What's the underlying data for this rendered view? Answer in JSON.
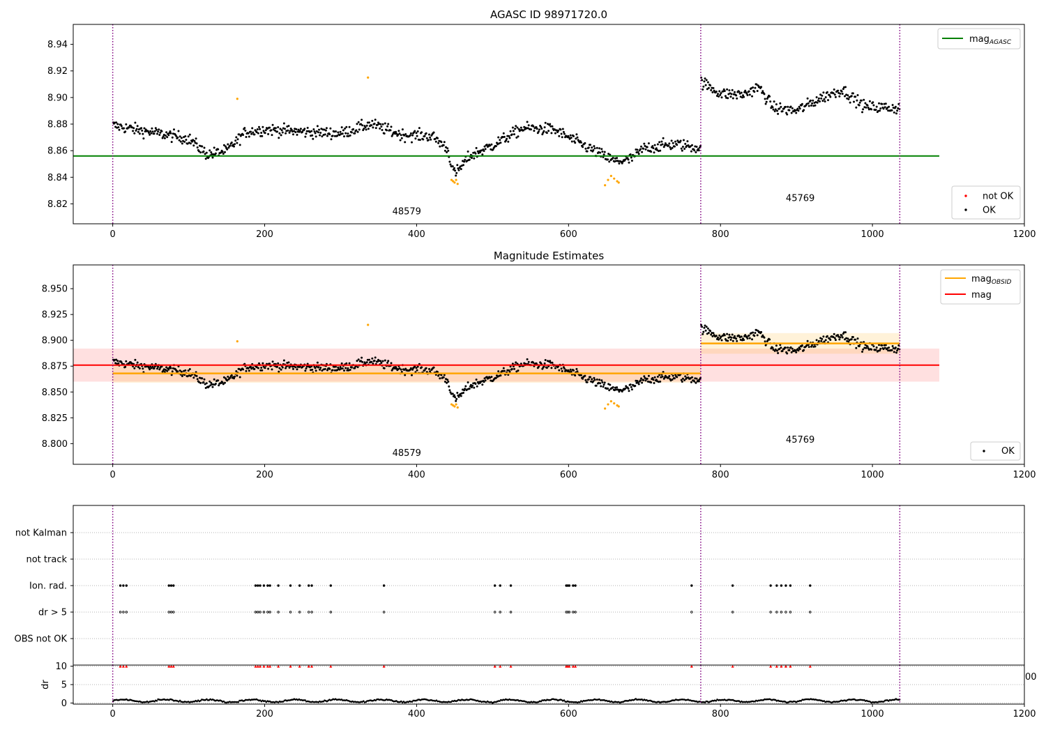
{
  "chart_data": [
    {
      "type": "scatter",
      "title": "AGASC ID 98971720.0",
      "xlim": [
        -52,
        1200
      ],
      "ylim": [
        8.805,
        8.955
      ],
      "xticks": [
        0,
        200,
        400,
        600,
        800,
        1000,
        1200
      ],
      "yticks": [
        8.82,
        8.84,
        8.86,
        8.88,
        8.9,
        8.92,
        8.94
      ],
      "obs_boundaries": [
        0,
        774,
        1036
      ],
      "obs_labels": [
        {
          "text": "48579",
          "x": 387,
          "y": 8.812
        },
        {
          "text": "45769",
          "x": 905,
          "y": 8.822
        }
      ],
      "lines": [
        {
          "name": "mag_AGASC",
          "label_main": "mag",
          "label_sub": "AGASC",
          "y": 8.856,
          "x_start": -52,
          "x_end": 1088,
          "color": "#008000"
        }
      ],
      "legend_top": {
        "position": "upper right",
        "entries": [
          {
            "series": "mag_AGASC",
            "main": "mag",
            "sub": "AGASC"
          }
        ]
      },
      "legend_bottom": {
        "position": "lower right",
        "entries": [
          {
            "label": "not OK",
            "color": "#ff0000"
          },
          {
            "label": "OK",
            "color": "#000000"
          }
        ]
      },
      "segments": [
        {
          "x_start": 0,
          "x_end": 774,
          "trend": [
            [
              0,
              8.879
            ],
            [
              60,
              8.873
            ],
            [
              100,
              8.869
            ],
            [
              125,
              8.857
            ],
            [
              150,
              8.86
            ],
            [
              175,
              8.874
            ],
            [
              200,
              8.876
            ],
            [
              260,
              8.874
            ],
            [
              300,
              8.873
            ],
            [
              340,
              8.88
            ],
            [
              380,
              8.872
            ],
            [
              420,
              8.871
            ],
            [
              440,
              8.862
            ],
            [
              450,
              8.842
            ],
            [
              470,
              8.856
            ],
            [
              500,
              8.864
            ],
            [
              540,
              8.877
            ],
            [
              580,
              8.876
            ],
            [
              620,
              8.864
            ],
            [
              660,
              8.852
            ],
            [
              680,
              8.853
            ],
            [
              700,
              8.862
            ],
            [
              740,
              8.865
            ],
            [
              774,
              8.862
            ]
          ],
          "noise": 0.007
        },
        {
          "x_start": 774,
          "x_end": 1036,
          "trend": [
            [
              774,
              8.912
            ],
            [
              800,
              8.903
            ],
            [
              830,
              8.902
            ],
            [
              850,
              8.908
            ],
            [
              870,
              8.892
            ],
            [
              900,
              8.89
            ],
            [
              930,
              8.899
            ],
            [
              960,
              8.906
            ],
            [
              990,
              8.893
            ],
            [
              1036,
              8.892
            ]
          ],
          "noise": 0.007
        }
      ],
      "orange_points": [
        [
          164,
          8.899
        ],
        [
          336,
          8.915
        ],
        [
          446,
          8.838
        ],
        [
          448,
          8.837
        ],
        [
          450,
          8.836
        ],
        [
          452,
          8.838
        ],
        [
          454,
          8.835
        ],
        [
          648,
          8.834
        ],
        [
          652,
          8.838
        ],
        [
          656,
          8.841
        ],
        [
          660,
          8.839
        ],
        [
          664,
          8.837
        ],
        [
          666,
          8.836
        ]
      ]
    },
    {
      "type": "scatter",
      "title": "Magnitude Estimates",
      "xlim": [
        -52,
        1200
      ],
      "ylim": [
        8.78,
        8.973
      ],
      "xticks": [
        0,
        200,
        400,
        600,
        800,
        1000,
        1200
      ],
      "yticks": [
        8.8,
        8.825,
        8.85,
        8.875,
        8.9,
        8.925,
        8.95
      ],
      "obs_boundaries": [
        0,
        774,
        1036
      ],
      "obs_labels": [
        {
          "text": "48579",
          "x": 387,
          "y": 8.788
        },
        {
          "text": "45769",
          "x": 905,
          "y": 8.801
        }
      ],
      "mag": {
        "name": "mag",
        "value": 8.876,
        "band": [
          8.86,
          8.892
        ],
        "x_start": -52,
        "x_end": 1088,
        "color": "#ff0000"
      },
      "mag_obsid": [
        {
          "name": "mag_OBSID",
          "x_start": 0,
          "x_end": 774,
          "value": 8.868,
          "band": [
            8.859,
            8.877
          ]
        },
        {
          "name": "mag_OBSID",
          "x_start": 774,
          "x_end": 1036,
          "value": 8.897,
          "band": [
            8.887,
            8.907
          ]
        }
      ],
      "legend_top": {
        "position": "upper right",
        "entries": [
          {
            "main": "mag",
            "sub": "OBSID",
            "color": "#ffa500"
          },
          {
            "main": "mag",
            "sub": "",
            "color": "#ff0000"
          }
        ]
      },
      "legend_bottom": {
        "position": "lower right",
        "entries": [
          {
            "label": "OK",
            "color": "#000000"
          }
        ]
      }
    },
    {
      "type": "scatter",
      "title": "",
      "xlim": [
        -52,
        1200
      ],
      "categories": [
        "not Kalman",
        "not track",
        "Ion. rad.",
        "dr > 5",
        "OBS not OK"
      ],
      "flag_x": [
        10,
        14,
        18,
        74,
        77,
        80,
        188,
        191,
        194,
        199,
        204,
        207,
        218,
        234,
        246,
        258,
        262,
        287,
        357,
        503,
        510,
        524,
        597,
        599,
        601,
        606,
        609,
        762,
        816,
        866,
        874,
        880,
        886,
        892,
        918
      ],
      "flagged_rows": [
        "Ion. rad.",
        "dr > 5"
      ],
      "dr_panel": {
        "ylabel": "dr",
        "ylim": [
          0,
          10
        ],
        "yticks": [
          0,
          5,
          10
        ],
        "marker_y": 10,
        "marker_color": "#ff0000",
        "trend_level": 0.6,
        "x_start": 0,
        "x_end": 1036
      },
      "obs_boundaries": [
        0,
        774,
        1036
      ],
      "xticks": [
        0,
        200,
        400,
        600,
        800,
        1000,
        1200
      ],
      "stray_tick_label": "00"
    }
  ]
}
